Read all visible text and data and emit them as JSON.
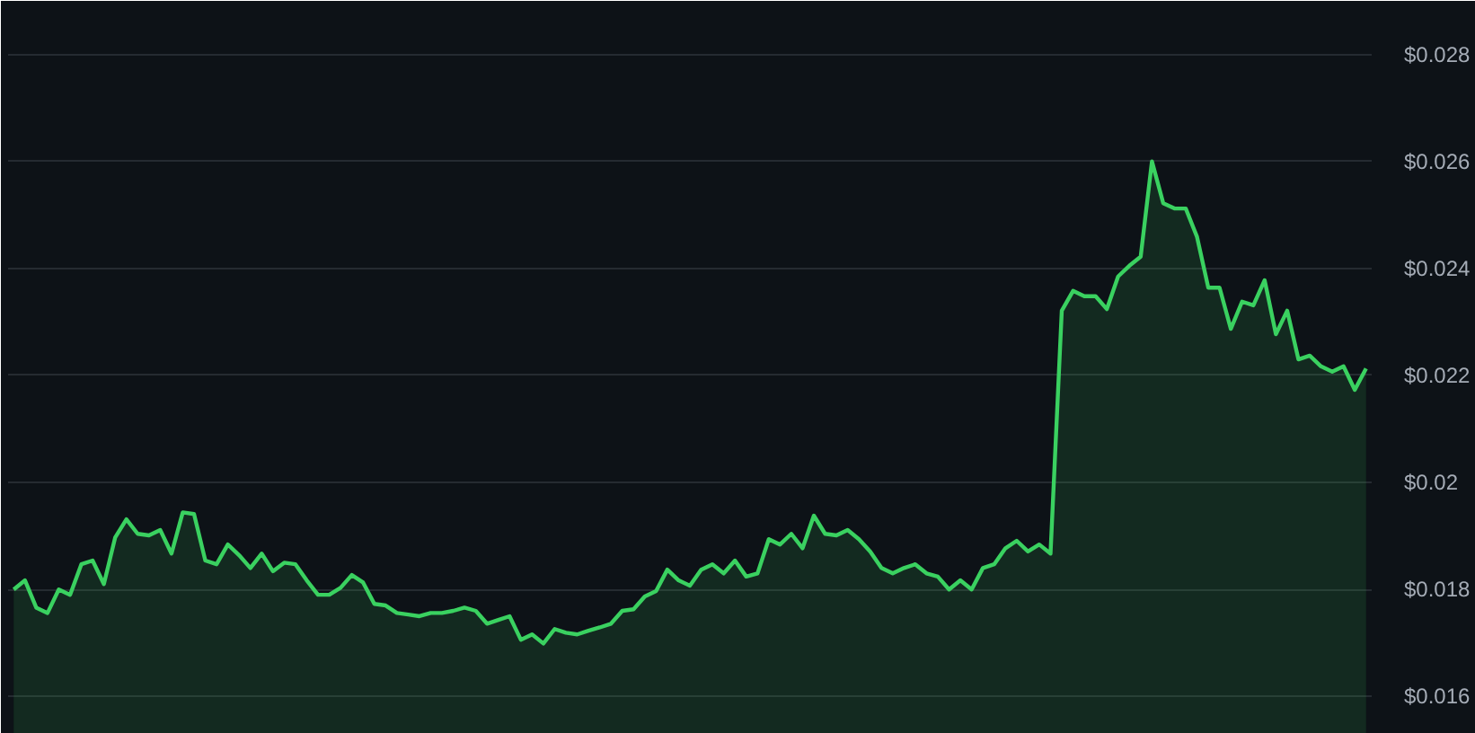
{
  "chart_data": {
    "type": "area",
    "categories": [
      null,
      null,
      null,
      null,
      null,
      null,
      null,
      null,
      null,
      null,
      null,
      null,
      null,
      null,
      null,
      null,
      null,
      null,
      null,
      null,
      null,
      null,
      null,
      null,
      null,
      null,
      null,
      null,
      null,
      null,
      null,
      null,
      null,
      null,
      null,
      null,
      null,
      null,
      null,
      null,
      null,
      null,
      null,
      null,
      null,
      null,
      null,
      null,
      null,
      null,
      null,
      null,
      null,
      null,
      null,
      null,
      null,
      null,
      null,
      null,
      null,
      null,
      null,
      null,
      null,
      null,
      null,
      null,
      null,
      null,
      null,
      null,
      null,
      null,
      null,
      null,
      null,
      null,
      null,
      null,
      null,
      null,
      null,
      null,
      null,
      null,
      null,
      null,
      null,
      null,
      null,
      null,
      null,
      null,
      null,
      null,
      null,
      null,
      null,
      null,
      null,
      null,
      null,
      null,
      null,
      null,
      null,
      null,
      null,
      null,
      null,
      null,
      null,
      null,
      null,
      null,
      null,
      null,
      null,
      null,
      null
    ],
    "series": [
      {
        "color": "#3ad160",
        "values": [
          0.018,
          0.01817,
          0.01766,
          0.01756,
          0.018,
          0.0179,
          0.01847,
          0.01854,
          0.0181,
          0.01897,
          0.01931,
          0.01904,
          0.01901,
          0.01911,
          0.01867,
          0.01944,
          0.01941,
          0.01854,
          0.01847,
          0.01884,
          0.01864,
          0.0184,
          0.01867,
          0.01834,
          0.0185,
          0.01847,
          0.01817,
          0.0179,
          0.0179,
          0.01803,
          0.01827,
          0.01813,
          0.01773,
          0.0177,
          0.01756,
          0.01753,
          0.0175,
          0.01756,
          0.01756,
          0.0176,
          0.01766,
          0.0176,
          0.01736,
          0.01743,
          0.0175,
          0.01706,
          0.01716,
          0.01699,
          0.01726,
          0.01719,
          0.01716,
          0.01723,
          0.01729,
          0.01736,
          0.0176,
          0.01763,
          0.01787,
          0.01797,
          0.01837,
          0.01817,
          0.01807,
          0.01837,
          0.01847,
          0.0183,
          0.01854,
          0.01824,
          0.0183,
          0.01894,
          0.01884,
          0.01904,
          0.01877,
          0.01938,
          0.01904,
          0.01901,
          0.01911,
          0.01894,
          0.01871,
          0.0184,
          0.0183,
          0.0184,
          0.01847,
          0.0183,
          0.01824,
          0.018,
          0.01817,
          0.018,
          0.0184,
          0.01847,
          0.01877,
          0.01891,
          0.01871,
          0.01884,
          0.01867,
          0.02321,
          0.02358,
          0.02348,
          0.02348,
          0.02324,
          0.02385,
          0.02405,
          0.02422,
          0.026,
          0.02522,
          0.02512,
          0.02512,
          0.02459,
          0.02364,
          0.02364,
          0.02287,
          0.02338,
          0.02331,
          0.02378,
          0.02277,
          0.02321,
          0.0223,
          0.02237,
          0.02217,
          0.02207,
          0.02217,
          0.02173,
          0.02213
        ]
      }
    ],
    "ylim": [
      0.0153,
      0.029
    ],
    "yticks": [
      {
        "value": 0.016,
        "label": "$0.016"
      },
      {
        "value": 0.018,
        "label": "$0.018"
      },
      {
        "value": 0.02,
        "label": "$0.02"
      },
      {
        "value": 0.022,
        "label": "$0.022"
      },
      {
        "value": 0.024,
        "label": "$0.024"
      },
      {
        "value": 0.026,
        "label": "$0.026"
      },
      {
        "value": 0.028,
        "label": "$0.028"
      }
    ],
    "grid": "y",
    "tick_labels": "y"
  }
}
